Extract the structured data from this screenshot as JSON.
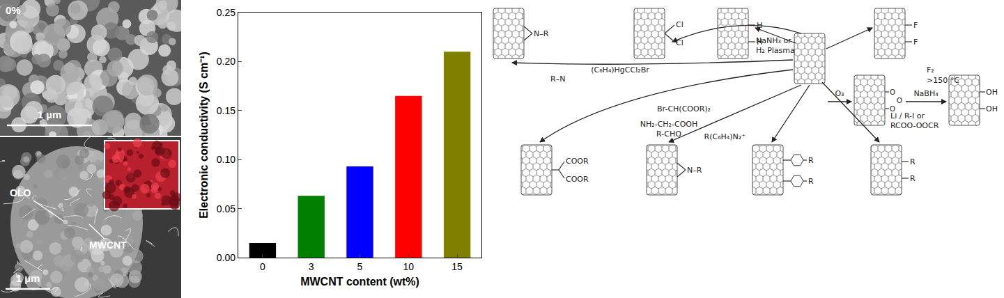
{
  "chart_data": {
    "type": "bar",
    "categories": [
      "0",
      "3",
      "5",
      "10",
      "15"
    ],
    "values": [
      0.015,
      0.063,
      0.093,
      0.165,
      0.21
    ],
    "colors": [
      "#000000",
      "#008000",
      "#0000ff",
      "#ff0000",
      "#808000"
    ],
    "x_label": "MWCNT content (wt%)",
    "y_label": "Electronic conductivity (S cm⁻¹)",
    "ylim": [
      0,
      0.25
    ],
    "yticks": [
      {
        "value": 0,
        "label": "0.00"
      },
      {
        "value": 0.05,
        "label": "0.05"
      },
      {
        "value": 0.1,
        "label": "0.10"
      },
      {
        "value": 0.15,
        "label": "0.15"
      },
      {
        "value": 0.2,
        "label": "0.20"
      },
      {
        "value": 0.25,
        "label": "0.25"
      }
    ],
    "grid": false
  },
  "sem_images": [
    {
      "label": "0%",
      "scale_bar": "1 µm"
    },
    {
      "labels": [
        "OLO",
        "MWCNT"
      ],
      "scale_bar": "1 µm"
    }
  ],
  "scheme": {
    "reactions": [
      {
        "reagents": [
          "R–N"
        ],
        "groups": [
          "N–R"
        ]
      },
      {
        "reagents": [
          "(C₆H₄)HgCCl₂Br"
        ],
        "groups": [
          "Cl",
          "Cl"
        ]
      },
      {
        "reagents": [
          "NaNH₃ or",
          "H₂ Plasma"
        ],
        "groups": [
          "H",
          "H"
        ]
      },
      {
        "reagents": [
          "F₂",
          ">150 °C"
        ],
        "groups": [
          "F",
          "F"
        ]
      },
      {
        "reagents": [
          "O₃"
        ],
        "groups": [
          "O",
          "O",
          "O"
        ]
      },
      {
        "reagents": [
          "NaBH₄"
        ],
        "groups": [
          "OH",
          "OH"
        ]
      },
      {
        "reagents": [
          "Br-CH(COOR)₂"
        ],
        "groups": [
          "COOR",
          "COOR"
        ]
      },
      {
        "reagents": [
          "NH₂-CH₂-COOH",
          "R-CHO"
        ],
        "groups": [
          "N–R"
        ]
      },
      {
        "reagents": [
          "R(C₆H₄)N₂⁺"
        ],
        "groups": [
          "R",
          "R"
        ]
      },
      {
        "reagents": [
          "Li / R-I or",
          "RCOO-OOCR"
        ],
        "groups": [
          "R",
          "R"
        ]
      }
    ]
  }
}
